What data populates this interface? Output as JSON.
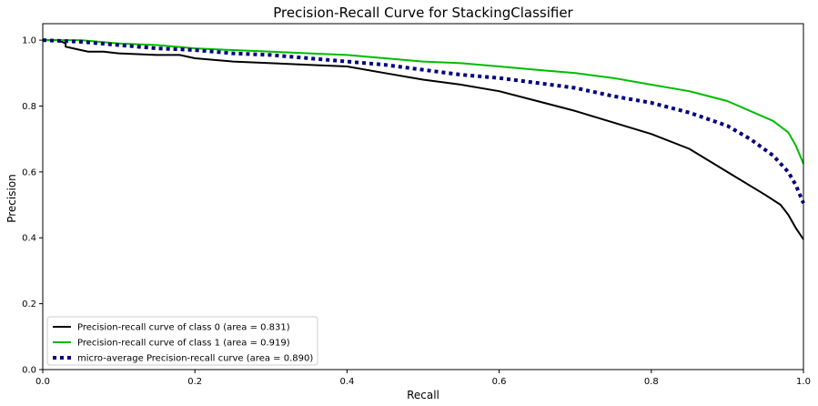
{
  "chart_data": {
    "type": "line",
    "title": "Precision-Recall Curve for StackingClassifier",
    "xlabel": "Recall",
    "ylabel": "Precision",
    "xlim": [
      0,
      1
    ],
    "ylim": [
      0,
      1.05
    ],
    "x_ticks": [
      "0.0",
      "0.2",
      "0.4",
      "0.6",
      "0.8",
      "1.0"
    ],
    "y_ticks": [
      "0.0",
      "0.2",
      "0.4",
      "0.6",
      "0.8",
      "1.0"
    ],
    "grid": false,
    "legend_position": "lower-left",
    "series": [
      {
        "name": "Precision-recall curve of class 0 (area = 0.831)",
        "color": "#000000",
        "style": "solid",
        "points": [
          [
            0,
            1.0
          ],
          [
            0.02,
            1.0
          ],
          [
            0.03,
            0.99
          ],
          [
            0.03,
            0.98
          ],
          [
            0.04,
            0.975
          ],
          [
            0.05,
            0.97
          ],
          [
            0.06,
            0.965
          ],
          [
            0.08,
            0.965
          ],
          [
            0.1,
            0.96
          ],
          [
            0.15,
            0.955
          ],
          [
            0.18,
            0.955
          ],
          [
            0.2,
            0.945
          ],
          [
            0.25,
            0.935
          ],
          [
            0.3,
            0.93
          ],
          [
            0.35,
            0.925
          ],
          [
            0.4,
            0.92
          ],
          [
            0.45,
            0.9
          ],
          [
            0.5,
            0.88
          ],
          [
            0.55,
            0.865
          ],
          [
            0.6,
            0.845
          ],
          [
            0.65,
            0.815
          ],
          [
            0.7,
            0.785
          ],
          [
            0.75,
            0.75
          ],
          [
            0.8,
            0.715
          ],
          [
            0.85,
            0.67
          ],
          [
            0.9,
            0.6
          ],
          [
            0.95,
            0.53
          ],
          [
            0.97,
            0.5
          ],
          [
            0.98,
            0.47
          ],
          [
            0.99,
            0.43
          ],
          [
            1.0,
            0.395
          ]
        ]
      },
      {
        "name": "Precision-recall curve of class 1 (area = 0.919)",
        "color": "#00bb00",
        "style": "solid",
        "points": [
          [
            0,
            1.0
          ],
          [
            0.05,
            1.0
          ],
          [
            0.1,
            0.99
          ],
          [
            0.15,
            0.985
          ],
          [
            0.2,
            0.975
          ],
          [
            0.25,
            0.97
          ],
          [
            0.3,
            0.965
          ],
          [
            0.35,
            0.96
          ],
          [
            0.4,
            0.955
          ],
          [
            0.45,
            0.945
          ],
          [
            0.5,
            0.935
          ],
          [
            0.55,
            0.93
          ],
          [
            0.6,
            0.92
          ],
          [
            0.65,
            0.91
          ],
          [
            0.7,
            0.9
          ],
          [
            0.75,
            0.885
          ],
          [
            0.8,
            0.865
          ],
          [
            0.85,
            0.845
          ],
          [
            0.9,
            0.815
          ],
          [
            0.93,
            0.785
          ],
          [
            0.96,
            0.755
          ],
          [
            0.98,
            0.72
          ],
          [
            0.99,
            0.68
          ],
          [
            1.0,
            0.625
          ]
        ]
      },
      {
        "name": "micro-average Precision-recall curve (area = 0.890)",
        "color": "#000080",
        "style": "dotted",
        "points": [
          [
            0,
            1.0
          ],
          [
            0.05,
            0.995
          ],
          [
            0.1,
            0.985
          ],
          [
            0.15,
            0.975
          ],
          [
            0.2,
            0.97
          ],
          [
            0.25,
            0.96
          ],
          [
            0.3,
            0.955
          ],
          [
            0.35,
            0.945
          ],
          [
            0.4,
            0.935
          ],
          [
            0.45,
            0.925
          ],
          [
            0.5,
            0.91
          ],
          [
            0.55,
            0.895
          ],
          [
            0.6,
            0.885
          ],
          [
            0.65,
            0.87
          ],
          [
            0.7,
            0.855
          ],
          [
            0.75,
            0.83
          ],
          [
            0.8,
            0.81
          ],
          [
            0.85,
            0.78
          ],
          [
            0.9,
            0.74
          ],
          [
            0.93,
            0.7
          ],
          [
            0.96,
            0.65
          ],
          [
            0.98,
            0.6
          ],
          [
            0.99,
            0.56
          ],
          [
            1.0,
            0.505
          ]
        ]
      }
    ]
  }
}
